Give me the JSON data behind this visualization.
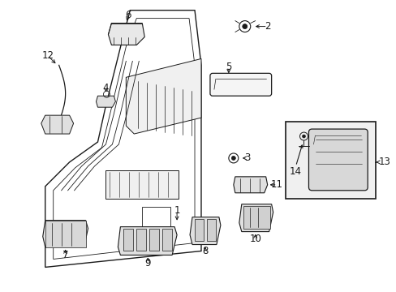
{
  "background_color": "#ffffff",
  "figure_width": 4.89,
  "figure_height": 3.6,
  "dpi": 100,
  "line_color": "#1a1a1a",
  "font_size": 8.5
}
